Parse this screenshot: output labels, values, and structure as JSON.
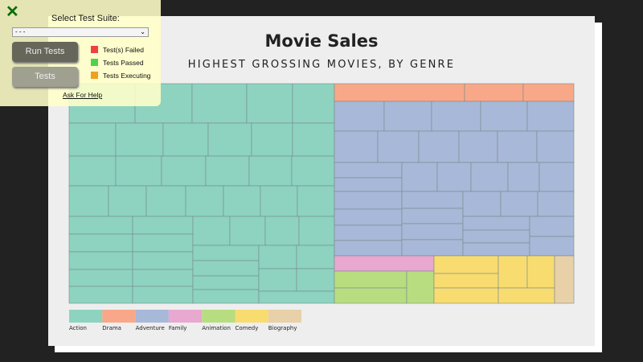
{
  "chart": {
    "title": "Movie Sales",
    "subtitle": "HIGHEST GROSSING MOVIES, BY GENRE"
  },
  "chart_data": {
    "type": "treemap",
    "title": "Movie Sales",
    "subtitle": "HIGHEST GROSSING MOVIES, BY GENRE",
    "legend_position": "bottom-left",
    "categories": [
      "Action",
      "Drama",
      "Adventure",
      "Family",
      "Animation",
      "Comedy",
      "Biography"
    ],
    "colors": {
      "Action": "#8dd3c0",
      "Drama": "#f8a888",
      "Adventure": "#a8b8d8",
      "Family": "#e8a8d0",
      "Animation": "#b8dd80",
      "Comedy": "#f8dc70",
      "Biography": "#e8d0a8"
    },
    "approx_area_share_percent": {
      "Action": 52.5,
      "Drama": 3.8,
      "Adventure": 33.4,
      "Family": 1.4,
      "Animation": 2.9,
      "Comedy": 5.2,
      "Biography": 0.8
    }
  },
  "test_panel": {
    "select_label": "Select Test Suite:",
    "select_value": "- - -",
    "run_button": "Run Tests",
    "tests_button": "Tests",
    "legend": [
      "Test(s) Failed",
      "Tests Passed",
      "Tests Executing"
    ],
    "legend_colors": [
      "#f04040",
      "#50d050",
      "#f0a020"
    ],
    "help_link": "Ask For Help"
  }
}
